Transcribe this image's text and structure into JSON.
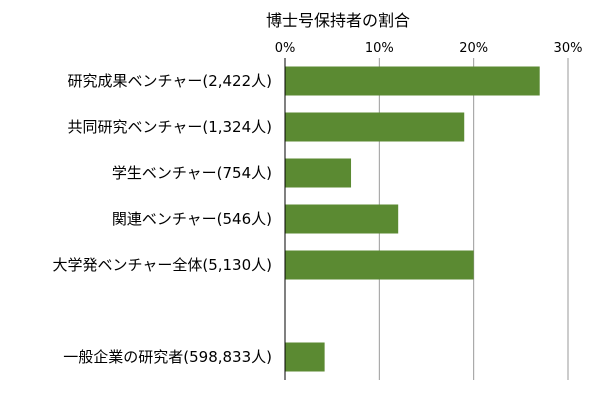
{
  "chart_data": {
    "type": "bar",
    "orientation": "horizontal",
    "title": "博士号保持者の割合",
    "xlabel": "",
    "ylabel": "",
    "xlim": [
      0,
      30
    ],
    "x_ticks": [
      "0%",
      "10%",
      "20%",
      "30%"
    ],
    "x_axis_position": "top",
    "grid": true,
    "legend": "none",
    "bar_color": "#5b8a32",
    "categories": [
      "研究成果ベンチャー(2,422人)",
      "共同研究ベンチャー(1,324人)",
      "学生ベンチャー(754人)",
      "関連ベンチャー(546人)",
      "大学発ベンチャー全体(5,130人)",
      "",
      "一般企業の研究者(598,833人)"
    ],
    "values": [
      27,
      19,
      7,
      12,
      20,
      null,
      4.2
    ]
  }
}
